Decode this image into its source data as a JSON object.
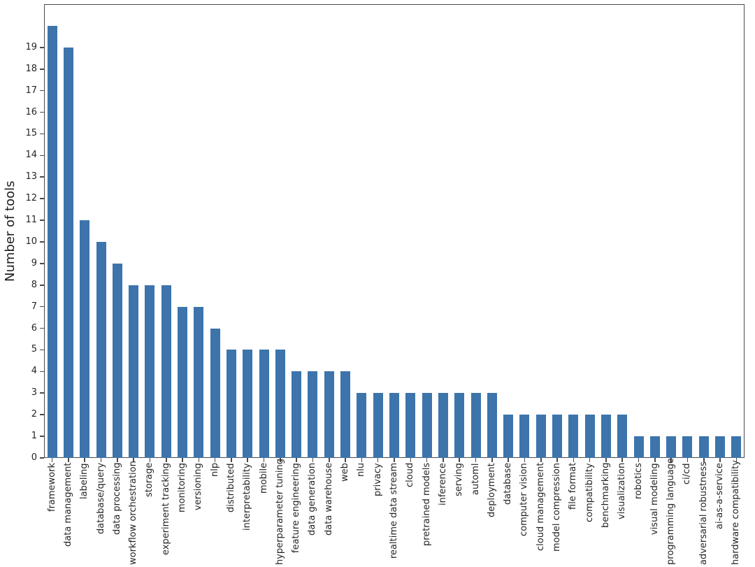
{
  "figure": {
    "background": "#ffffff",
    "bar_color": "#3d74ab",
    "axis_color": "#4a4a4a",
    "text_color": "#262626"
  },
  "chart_data": {
    "type": "bar",
    "title": "",
    "xlabel": "",
    "ylabel": "Number of tools",
    "ylim": [
      0,
      21
    ],
    "grid": false,
    "legend_position": "none",
    "yticks": [
      0,
      1,
      2,
      3,
      4,
      5,
      6,
      7,
      8,
      9,
      10,
      11,
      12,
      13,
      14,
      15,
      16,
      17,
      18,
      19
    ],
    "categories": [
      "framework",
      "data management",
      "labeling",
      "database/query",
      "data processing",
      "workflow orchestration",
      "storage",
      "experiment tracking",
      "monitoring",
      "versioning",
      "nlp",
      "distributed",
      "interpretability",
      "mobile",
      "hyperparameter tuning",
      "feature engineering",
      "data generation",
      "data warehouse",
      "web",
      "nlu",
      "privacy",
      "realtime data stream",
      "cloud",
      "pretrained models",
      "inference",
      "serving",
      "automl",
      "deployment",
      "database",
      "computer vision",
      "cloud management",
      "model compression",
      "file format",
      "compatibility",
      "benchmarking",
      "visualization",
      "robotics",
      "visual modeling",
      "programming language",
      "ci/cd",
      "adversarial robustness",
      "ai-as-a-service",
      "hardware compatibility"
    ],
    "values": [
      20,
      19,
      11,
      10,
      9,
      8,
      8,
      8,
      7,
      7,
      6,
      5,
      5,
      5,
      5,
      4,
      4,
      4,
      4,
      3,
      3,
      3,
      3,
      3,
      3,
      3,
      3,
      3,
      2,
      2,
      2,
      2,
      2,
      2,
      2,
      2,
      1,
      1,
      1,
      1,
      1,
      1,
      1
    ]
  }
}
